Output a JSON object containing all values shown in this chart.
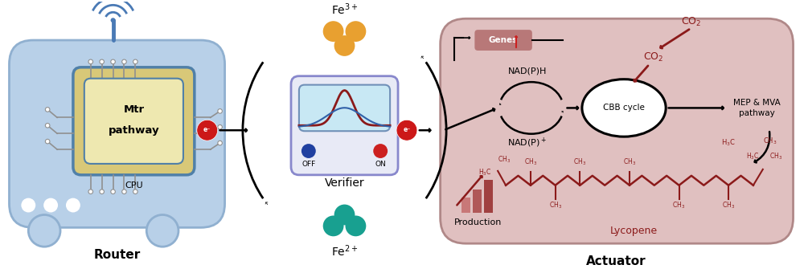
{
  "router_box_color": "#b8d0e8",
  "router_box_outline": "#90b0d0",
  "cpu_outer_color": "#d8c878",
  "cpu_inner_color": "#eee8b0",
  "cpu_border_color": "#5080a8",
  "verifier_bg": "#e8eaf6",
  "verifier_border": "#8888cc",
  "verifier_screen_bg": "#c8e8f4",
  "verifier_screen_border": "#7090b8",
  "fe3_color": "#e8a030",
  "fe2_color": "#18a090",
  "actuator_bg": "#e0c0c0",
  "actuator_border": "#b08888",
  "electron_color": "#cc1818",
  "dark_red": "#8B1A1A",
  "mid_red": "#a03030",
  "black": "#000000",
  "white": "#ffffff",
  "blue_dot": "#2040a0",
  "red_dot": "#cc2020",
  "genes_box": "#b87878",
  "gray_circuit": "#909090",
  "router_label": "Router",
  "actuator_label": "Actuator",
  "verifier_label": "Verifier",
  "cpu_label1": "Mtr",
  "cpu_label2": "pathway",
  "cpu_bottom": "CPU",
  "off_label": "OFF",
  "on_label": "ON",
  "nadph_label": "NAD(P)H",
  "nadp_label": "NAD(P)⁺",
  "cbb_label": "CBB cycle",
  "mep_mva_label": "MEP & MVA\npathway",
  "genes_label": "Genes",
  "co2_label": "CO₂",
  "lycopene_label": "Lycopene",
  "production_label": "Production"
}
